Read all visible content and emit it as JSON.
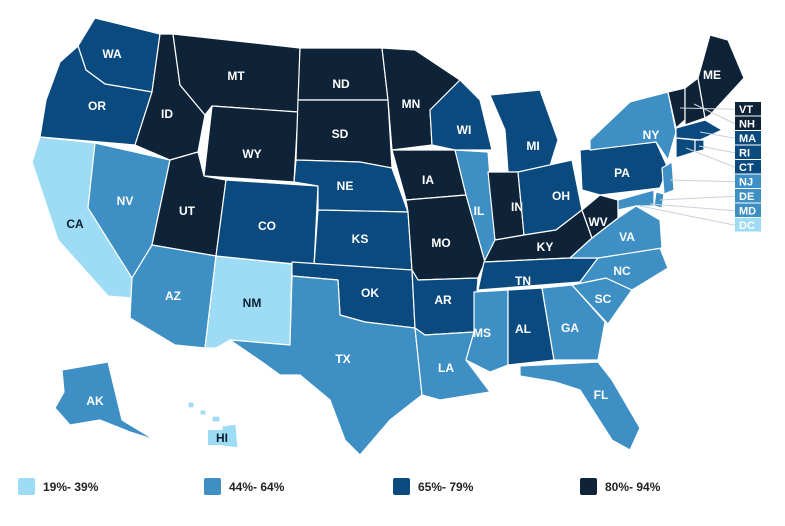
{
  "colors": {
    "c1": "#9edbf5",
    "c2": "#3d8fc4",
    "c3": "#0b4a7f",
    "c4": "#0f2338"
  },
  "legend": [
    {
      "label": "19%- 39%",
      "color": "#9edbf5"
    },
    {
      "label": "44%- 64%",
      "color": "#3d8fc4"
    },
    {
      "label": "65%- 79%",
      "color": "#0b4a7f"
    },
    {
      "label": "80%- 94%",
      "color": "#0f2338"
    }
  ],
  "states": {
    "WA": "WA",
    "OR": "OR",
    "CA": "CA",
    "NV": "NV",
    "ID": "ID",
    "MT": "MT",
    "WY": "WY",
    "UT": "UT",
    "AZ": "AZ",
    "NM": "NM",
    "CO": "CO",
    "ND": "ND",
    "SD": "SD",
    "NE": "NE",
    "KS": "KS",
    "OK": "OK",
    "TX": "TX",
    "MN": "MN",
    "IA": "IA",
    "MO": "MO",
    "AR": "AR",
    "LA": "LA",
    "WI": "WI",
    "IL": "IL",
    "MI": "MI",
    "IN": "IN",
    "OH": "OH",
    "KY": "KY",
    "TN": "TN",
    "MS": "MS",
    "AL": "AL",
    "GA": "GA",
    "FL": "FL",
    "SC": "SC",
    "NC": "NC",
    "VA": "VA",
    "WV": "WV",
    "PA": "PA",
    "NY": "NY",
    "ME": "ME",
    "AK": "AK",
    "HI": "HI"
  },
  "northeast_boxes": [
    {
      "code": "VT",
      "label": "VT",
      "tier": "c4"
    },
    {
      "code": "NH",
      "label": "NH",
      "tier": "c4"
    },
    {
      "code": "MA",
      "label": "MA",
      "tier": "c3"
    },
    {
      "code": "RI",
      "label": "RI",
      "tier": "c3"
    },
    {
      "code": "CT",
      "label": "CT",
      "tier": "c3"
    },
    {
      "code": "NJ",
      "label": "NJ",
      "tier": "c2"
    },
    {
      "code": "DE",
      "label": "DE",
      "tier": "c2"
    },
    {
      "code": "MD",
      "label": "MD",
      "tier": "c2"
    },
    {
      "code": "DC",
      "label": "DC",
      "tier": "c1"
    }
  ]
}
